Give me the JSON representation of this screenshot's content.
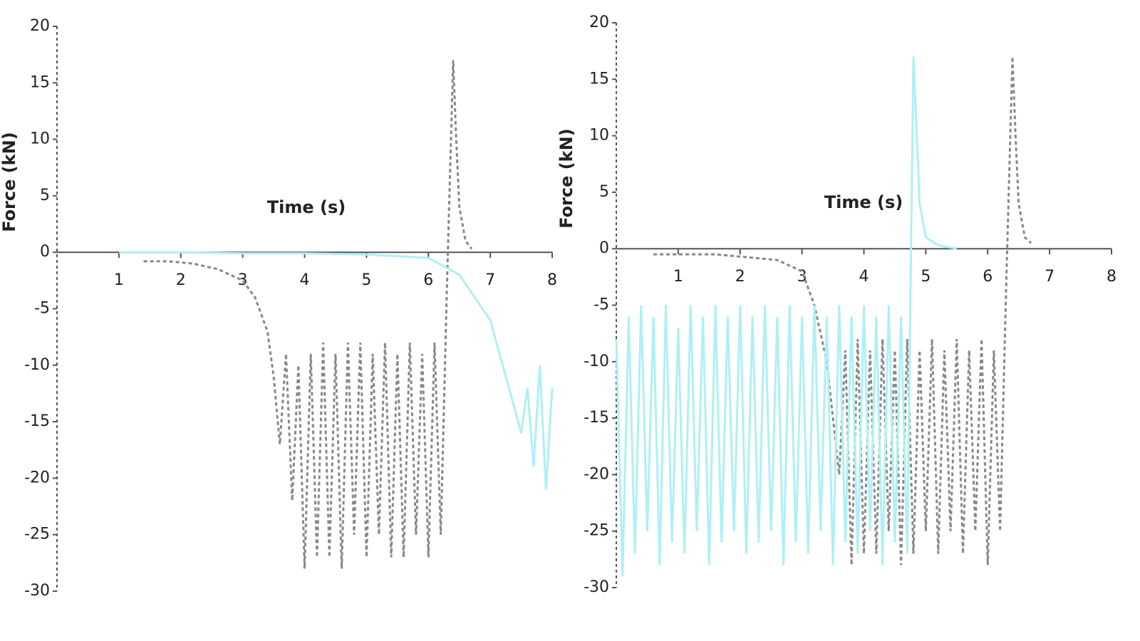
{
  "chart_data": [
    {
      "type": "line",
      "x_label": "Time (s)",
      "y_label": "Force (kN)",
      "xlim": [
        0,
        8
      ],
      "ylim": [
        -30,
        20
      ],
      "xticks": [
        1,
        2,
        3,
        4,
        5,
        6,
        7,
        8
      ],
      "yticks": [
        -30,
        -25,
        -20,
        -15,
        -10,
        -5,
        0,
        5,
        10,
        15,
        20
      ],
      "series": [
        {
          "name": "gray",
          "color": "#888888",
          "dash": true,
          "x": [
            1.4,
            1.8,
            2.2,
            2.6,
            3.0,
            3.2,
            3.4,
            3.5,
            3.6,
            3.7,
            3.8,
            3.9,
            4.0,
            4.1,
            4.2,
            4.3,
            4.4,
            4.5,
            4.6,
            4.7,
            4.8,
            4.9,
            5.0,
            5.1,
            5.2,
            5.3,
            5.4,
            5.5,
            5.6,
            5.7,
            5.8,
            5.9,
            6.0,
            6.1,
            6.2,
            6.3,
            6.4,
            6.45,
            6.5,
            6.6,
            6.7
          ],
          "values": [
            -0.8,
            -0.8,
            -1,
            -1.5,
            -2.5,
            -4,
            -7,
            -11,
            -17,
            -9,
            -22,
            -10,
            -28,
            -9,
            -27,
            -8,
            -27,
            -9,
            -28,
            -8,
            -25,
            -8,
            -27,
            -9,
            -25,
            -8,
            -27,
            -9,
            -27,
            -8,
            -25,
            -9,
            -27,
            -8,
            -25,
            -3,
            17,
            10,
            4,
            1,
            0.3
          ]
        },
        {
          "name": "cyan",
          "color": "#aef0f5",
          "dash": false,
          "x": [
            1,
            2,
            3,
            4,
            5,
            6,
            6.5,
            7,
            7.3,
            7.5,
            7.6,
            7.7,
            7.8,
            7.9,
            8
          ],
          "values": [
            0,
            0,
            -0.1,
            -0.1,
            -0.2,
            -0.5,
            -2,
            -6,
            -12,
            -16,
            -12,
            -19,
            -10,
            -21,
            -12
          ]
        }
      ]
    },
    {
      "type": "line",
      "x_label": "Time (s)",
      "y_label": "Force (kN)",
      "xlim": [
        0,
        8
      ],
      "ylim": [
        -30,
        20
      ],
      "xticks": [
        1,
        2,
        3,
        4,
        5,
        6,
        7,
        8
      ],
      "yticks": [
        -30,
        -25,
        -20,
        -15,
        -10,
        -5,
        0,
        5,
        10,
        15,
        20
      ],
      "series": [
        {
          "name": "gray",
          "color": "#888888",
          "dash": true,
          "x": [
            0.6,
            1.0,
            1.6,
            2.6,
            3.0,
            3.2,
            3.4,
            3.6,
            3.7,
            3.8,
            3.9,
            4.0,
            4.1,
            4.2,
            4.3,
            4.4,
            4.5,
            4.6,
            4.7,
            4.8,
            4.9,
            5.0,
            5.1,
            5.2,
            5.3,
            5.4,
            5.5,
            5.6,
            5.7,
            5.8,
            5.9,
            6.0,
            6.1,
            6.2,
            6.3,
            6.4,
            6.45,
            6.5,
            6.6,
            6.7
          ],
          "values": [
            -0.5,
            -0.5,
            -0.5,
            -1,
            -2,
            -5,
            -10,
            -20,
            -9,
            -28,
            -8,
            -27,
            -9,
            -27,
            -8,
            -25,
            -9,
            -28,
            -8,
            -27,
            -9,
            -25,
            -8,
            -27,
            -9,
            -25,
            -8,
            -27,
            -9,
            -25,
            -8,
            -28,
            -9,
            -25,
            -3,
            17,
            10,
            4,
            1,
            0.5
          ]
        },
        {
          "name": "cyan",
          "color": "#aef0f5",
          "dash": false,
          "x": [
            0,
            0.1,
            0.2,
            0.3,
            0.4,
            0.5,
            0.6,
            0.7,
            0.8,
            0.9,
            1.0,
            1.1,
            1.2,
            1.3,
            1.4,
            1.5,
            1.6,
            1.7,
            1.8,
            1.9,
            2.0,
            2.1,
            2.2,
            2.3,
            2.4,
            2.5,
            2.6,
            2.7,
            2.8,
            2.9,
            3.0,
            3.1,
            3.2,
            3.3,
            3.4,
            3.5,
            3.6,
            3.7,
            3.8,
            3.9,
            4.0,
            4.1,
            4.2,
            4.3,
            4.4,
            4.5,
            4.6,
            4.7,
            4.8,
            4.9,
            5.0,
            5.2,
            5.5
          ],
          "values": [
            -8,
            -29,
            -6,
            -27,
            -5,
            -25,
            -6,
            -28,
            -5,
            -26,
            -7,
            -27,
            -5,
            -25,
            -6,
            -28,
            -5,
            -26,
            -6,
            -25,
            -5,
            -27,
            -6,
            -26,
            -5,
            -25,
            -6,
            -28,
            -5,
            -26,
            -6,
            -27,
            -5,
            -25,
            -6,
            -28,
            -5,
            -26,
            -6,
            -27,
            -5,
            -25,
            -6,
            -28,
            -5,
            -26,
            -6,
            -27,
            17,
            4,
            1,
            0.3,
            0
          ]
        }
      ]
    }
  ]
}
